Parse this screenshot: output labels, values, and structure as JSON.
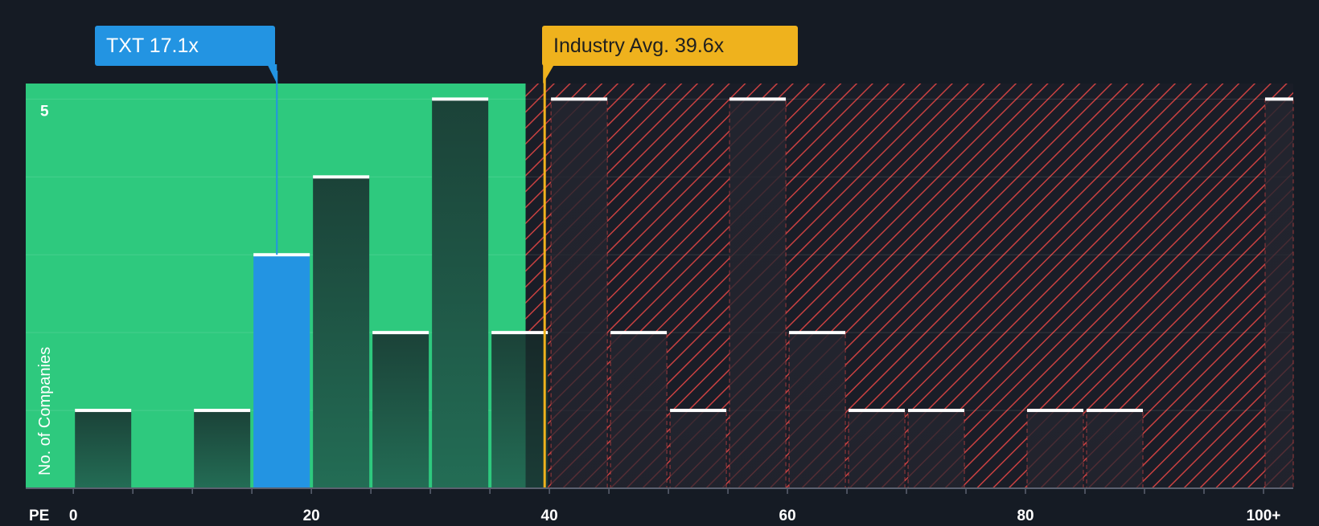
{
  "chart_data": {
    "type": "bar",
    "xlabel": "PE",
    "ylabel": "No. of Companies",
    "xlim": [
      -4,
      102.5
    ],
    "ylim": [
      0,
      5.2
    ],
    "bin_width": 5,
    "x_ticks": [
      {
        "value": 0,
        "label": "0"
      },
      {
        "value": 20,
        "label": "20"
      },
      {
        "value": 40,
        "label": "40"
      },
      {
        "value": 60,
        "label": "60"
      },
      {
        "value": 80,
        "label": "80"
      },
      {
        "value": 100,
        "label": "100+"
      }
    ],
    "y_ticks": [
      {
        "value": 5,
        "label": "5"
      }
    ],
    "bins": [
      {
        "start": 0,
        "count": 1
      },
      {
        "start": 10,
        "count": 1
      },
      {
        "start": 15,
        "count": 3,
        "highlight": true
      },
      {
        "start": 20,
        "count": 4
      },
      {
        "start": 25,
        "count": 2
      },
      {
        "start": 30,
        "count": 5
      },
      {
        "start": 35,
        "count": 2
      },
      {
        "start": 40,
        "count": 5
      },
      {
        "start": 45,
        "count": 2
      },
      {
        "start": 50,
        "count": 1
      },
      {
        "start": 55,
        "count": 5
      },
      {
        "start": 60,
        "count": 2
      },
      {
        "start": 65,
        "count": 1
      },
      {
        "start": 70,
        "count": 1
      },
      {
        "start": 80,
        "count": 1
      },
      {
        "start": 85,
        "count": 1
      },
      {
        "start": 100,
        "count": 5
      }
    ],
    "company": {
      "ticker": "TXT",
      "pe": 17.1,
      "label": "TXT 17.1x"
    },
    "industry_avg": {
      "pe": 39.6,
      "label": "Industry Avg. 39.6x"
    },
    "fair_zone_end": 38.0,
    "colors": {
      "background": "#151b24",
      "fair_zone": "#2ec97e",
      "bar_dark": "#1c4a3e",
      "bar_highlight": "#2394e2",
      "bar_cap": "#ffffff",
      "overvalued_hatch": "#d64545",
      "industry_line": "#efb21d",
      "company_line": "#2394e2"
    }
  }
}
